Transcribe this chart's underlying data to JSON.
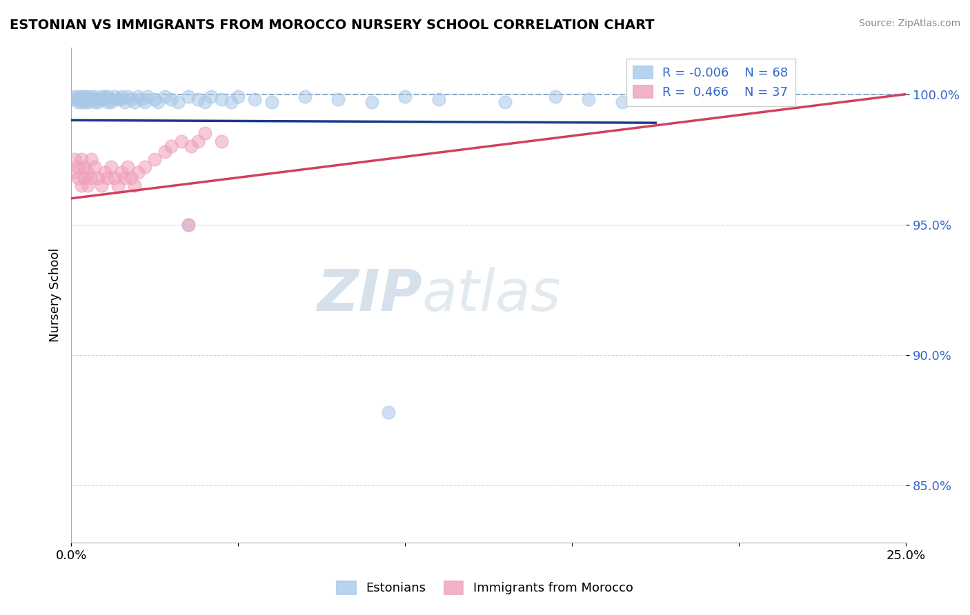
{
  "title": "ESTONIAN VS IMMIGRANTS FROM MOROCCO NURSERY SCHOOL CORRELATION CHART",
  "source": "Source: ZipAtlas.com",
  "ylabel": "Nursery School",
  "legend_labels": [
    "Estonians",
    "Immigrants from Morocco"
  ],
  "blue_color": "#A8C8E8",
  "pink_color": "#F0A0B8",
  "blue_line_color": "#1A3A8A",
  "pink_line_color": "#D04060",
  "R_blue": -0.006,
  "N_blue": 68,
  "R_pink": 0.466,
  "N_pink": 37,
  "xlim": [
    0.0,
    0.25
  ],
  "ylim": [
    0.828,
    1.018
  ],
  "yticks": [
    0.85,
    0.9,
    0.95,
    1.0
  ],
  "ytick_labels": [
    "85.0%",
    "90.0%",
    "95.0%",
    "100.0%"
  ],
  "xticks": [
    0.0,
    0.05,
    0.1,
    0.15,
    0.2,
    0.25
  ],
  "xtick_labels": [
    "0.0%",
    "",
    "",
    "",
    "",
    "25.0%"
  ],
  "blue_x": [
    0.001,
    0.001,
    0.002,
    0.002,
    0.002,
    0.003,
    0.003,
    0.003,
    0.004,
    0.004,
    0.004,
    0.005,
    0.005,
    0.005,
    0.006,
    0.006,
    0.007,
    0.007,
    0.007,
    0.008,
    0.008,
    0.009,
    0.009,
    0.01,
    0.01,
    0.011,
    0.011,
    0.012,
    0.012,
    0.013,
    0.014,
    0.015,
    0.015,
    0.016,
    0.017,
    0.018,
    0.019,
    0.02,
    0.021,
    0.022,
    0.023,
    0.025,
    0.026,
    0.028,
    0.03,
    0.032,
    0.035,
    0.038,
    0.04,
    0.042,
    0.045,
    0.048,
    0.05,
    0.055,
    0.06,
    0.07,
    0.08,
    0.09,
    0.1,
    0.11,
    0.13,
    0.145,
    0.155,
    0.165,
    0.178,
    0.19,
    0.035,
    0.095
  ],
  "blue_y": [
    0.998,
    0.999,
    0.997,
    0.998,
    0.999,
    0.997,
    0.998,
    0.999,
    0.997,
    0.998,
    0.999,
    0.997,
    0.998,
    0.999,
    0.998,
    0.999,
    0.998,
    0.997,
    0.999,
    0.998,
    0.997,
    0.999,
    0.998,
    0.999,
    0.998,
    0.997,
    0.999,
    0.998,
    0.997,
    0.999,
    0.998,
    0.999,
    0.998,
    0.997,
    0.999,
    0.998,
    0.997,
    0.999,
    0.998,
    0.997,
    0.999,
    0.998,
    0.997,
    0.999,
    0.998,
    0.997,
    0.999,
    0.998,
    0.997,
    0.999,
    0.998,
    0.997,
    0.999,
    0.998,
    0.997,
    0.999,
    0.998,
    0.997,
    0.999,
    0.998,
    0.997,
    0.999,
    0.998,
    0.997,
    0.999,
    0.998,
    0.95,
    0.878
  ],
  "pink_x": [
    0.001,
    0.001,
    0.002,
    0.002,
    0.003,
    0.003,
    0.004,
    0.004,
    0.005,
    0.005,
    0.006,
    0.006,
    0.007,
    0.008,
    0.009,
    0.01,
    0.011,
    0.012,
    0.013,
    0.014,
    0.015,
    0.016,
    0.017,
    0.018,
    0.019,
    0.02,
    0.022,
    0.025,
    0.028,
    0.03,
    0.033,
    0.036,
    0.038,
    0.04,
    0.045,
    0.035,
    0.21
  ],
  "pink_y": [
    0.975,
    0.97,
    0.972,
    0.968,
    0.975,
    0.965,
    0.968,
    0.972,
    0.965,
    0.97,
    0.968,
    0.975,
    0.972,
    0.968,
    0.965,
    0.97,
    0.968,
    0.972,
    0.968,
    0.965,
    0.97,
    0.968,
    0.972,
    0.968,
    0.965,
    0.97,
    0.972,
    0.975,
    0.978,
    0.98,
    0.982,
    0.98,
    0.982,
    0.985,
    0.982,
    0.95,
    1.0
  ],
  "blue_trend_x": [
    0.0,
    0.175
  ],
  "blue_trend_y": [
    0.99,
    0.989
  ],
  "pink_trend_x": [
    0.0,
    0.25
  ],
  "pink_trend_y": [
    0.96,
    1.0
  ],
  "watermark_zip": "ZIP",
  "watermark_atlas": "atlas",
  "background_color": "#FFFFFF",
  "grid_color": "#CCCCCC",
  "dashed_line_color": "#5577BB"
}
